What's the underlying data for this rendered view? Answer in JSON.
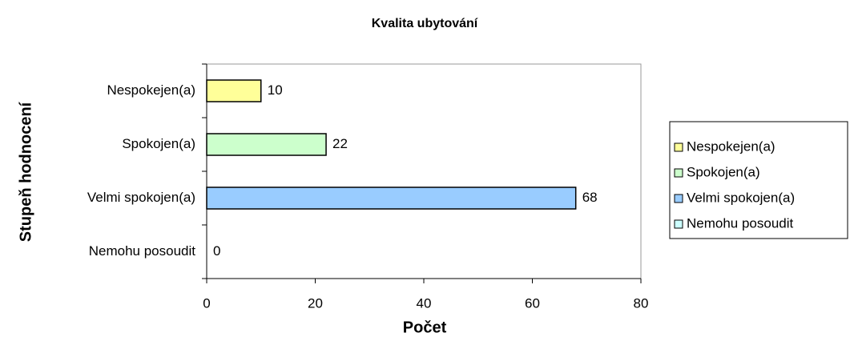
{
  "chart_data": {
    "type": "bar",
    "orientation": "horizontal",
    "title": "Kvalita ubytování",
    "x_label": "Počet",
    "y_label": "Stupeň hodnocení",
    "categories": [
      "Nespokejen(a)",
      "Spokojen(a)",
      "Velmi spokojen(a)",
      "Nemohu posoudit"
    ],
    "values": [
      10,
      22,
      68,
      0
    ],
    "colors": [
      "#ffff99",
      "#ccffcc",
      "#99ccff",
      "#ccffff"
    ],
    "xlim": [
      0,
      80
    ],
    "xticks": [
      0,
      20,
      40,
      60,
      80
    ],
    "legend": "right",
    "value_labels_shown": true
  }
}
